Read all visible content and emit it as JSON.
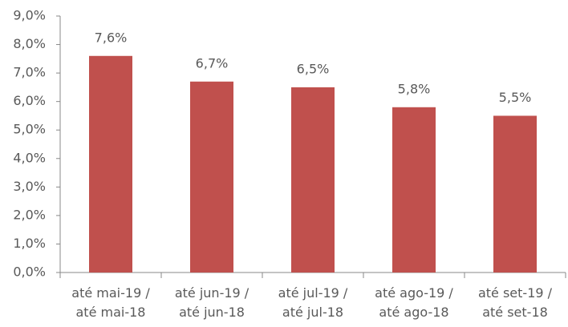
{
  "chart_data": {
    "type": "bar",
    "categories": [
      "até mai-19 / até mai-18",
      "até jun-19 / até jun-18",
      "até jul-19 / até jul-18",
      "até ago-19 / até ago-18",
      "até set-19 / até set-18"
    ],
    "values": [
      7.6,
      6.7,
      6.5,
      5.8,
      5.5
    ],
    "value_labels": [
      "7,6%",
      "6,7%",
      "6,5%",
      "5,8%",
      "5,5%"
    ],
    "color": "#c0504d",
    "ylim": [
      0,
      9
    ],
    "yticks": [
      {
        "value": 0,
        "label": "0,0%"
      },
      {
        "value": 1,
        "label": "1,0%"
      },
      {
        "value": 2,
        "label": "2,0%"
      },
      {
        "value": 3,
        "label": "3,0%"
      },
      {
        "value": 4,
        "label": "4,0%"
      },
      {
        "value": 5,
        "label": "5,0%"
      },
      {
        "value": 6,
        "label": "6,0%"
      },
      {
        "value": 7,
        "label": "7,0%"
      },
      {
        "value": 8,
        "label": "8,0%"
      },
      {
        "value": 9,
        "label": "9,0%"
      }
    ],
    "grid": false
  }
}
